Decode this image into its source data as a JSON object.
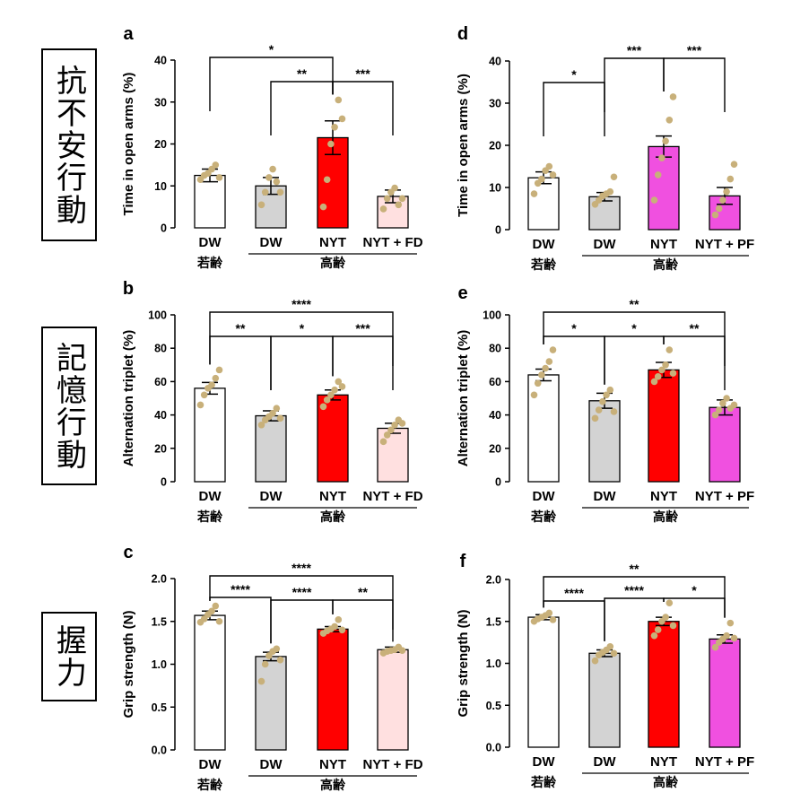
{
  "row_labels": [
    "抗不安行動",
    "記憶行動",
    "握力"
  ],
  "group_labels": {
    "young": "若齢",
    "aged": "高齢"
  },
  "colors": {
    "dw_young": "#ffffff",
    "dw_aged": "#d3d3d3",
    "nyt": "#ff0000",
    "fd": "#ffe0e0",
    "pf": "#f050e0",
    "dots": "#c8b07a",
    "axis": "#000000"
  },
  "chart_data": [
    {
      "id": "a",
      "panel_label": "a",
      "type": "bar",
      "ylabel": "Time in open arms (%)",
      "ylim": [
        0,
        40
      ],
      "yticks": [
        "0",
        "10",
        "20",
        "30",
        "40"
      ],
      "categories": [
        "DW",
        "DW",
        "NYT",
        "NYT + FD"
      ],
      "fills": [
        "dw_young",
        "dw_aged",
        "nyt",
        "fd"
      ],
      "values": [
        12.5,
        10,
        21.5,
        7.5
      ],
      "errors": [
        1.5,
        2,
        4,
        1.5
      ],
      "points": [
        [
          11.5,
          12.5,
          13,
          14,
          15,
          12
        ],
        [
          5.5,
          8.5,
          12,
          14,
          11,
          8.5
        ],
        [
          5,
          11.5,
          20,
          24,
          30.5,
          26
        ],
        [
          4.5,
          7,
          8.5,
          9.5,
          5.5,
          7
        ]
      ],
      "sig": [
        {
          "from": 0,
          "to": 2,
          "level": 1,
          "label": "*"
        },
        {
          "from": 1,
          "to": 2,
          "level": 0,
          "label": "**"
        },
        {
          "from": 2,
          "to": 3,
          "level": 0,
          "label": "***"
        }
      ]
    },
    {
      "id": "b",
      "panel_label": "b",
      "type": "bar",
      "ylabel": "Alternation triplet (%)",
      "ylim": [
        0,
        100
      ],
      "yticks": [
        "0",
        "20",
        "40",
        "60",
        "80",
        "100"
      ],
      "categories": [
        "DW",
        "DW",
        "NYT",
        "NYT + FD"
      ],
      "fills": [
        "dw_young",
        "dw_aged",
        "nyt",
        "fd"
      ],
      "values": [
        56,
        39.5,
        52,
        32
      ],
      "errors": [
        3.5,
        3,
        3,
        3
      ],
      "points": [
        [
          46,
          52,
          56,
          58,
          62,
          67
        ],
        [
          34,
          37,
          39,
          41,
          44,
          38
        ],
        [
          45,
          49,
          52,
          55,
          60,
          57
        ],
        [
          24,
          28,
          31,
          34,
          37,
          35
        ]
      ],
      "sig": [
        {
          "from": 0,
          "to": 3,
          "level": 1,
          "label": "****"
        },
        {
          "from": 0,
          "to": 1,
          "level": 0,
          "label": "**"
        },
        {
          "from": 1,
          "to": 2,
          "level": 0,
          "label": "*"
        },
        {
          "from": 2,
          "to": 3,
          "level": 0,
          "label": "***"
        }
      ]
    },
    {
      "id": "c",
      "panel_label": "c",
      "type": "bar",
      "ylabel": "Grip strength (N)",
      "ylim": [
        0,
        2.0
      ],
      "yticks": [
        "0.0",
        "0.5",
        "1.0",
        "1.5",
        "2.0"
      ],
      "categories": [
        "DW",
        "DW",
        "NYT",
        "NYT + FD"
      ],
      "fills": [
        "dw_young",
        "dw_aged",
        "nyt",
        "fd"
      ],
      "values": [
        1.57,
        1.09,
        1.41,
        1.17
      ],
      "errors": [
        0.05,
        0.05,
        0.03,
        0.03
      ],
      "points": [
        [
          1.49,
          1.53,
          1.58,
          1.62,
          1.68,
          1.5
        ],
        [
          0.8,
          1.0,
          1.1,
          1.15,
          1.18,
          1.05
        ],
        [
          1.36,
          1.39,
          1.41,
          1.44,
          1.52,
          1.4
        ],
        [
          1.13,
          1.15,
          1.16,
          1.17,
          1.2,
          1.16
        ]
      ],
      "sig": [
        {
          "from": 0,
          "to": 3,
          "level": 1,
          "label": "****"
        },
        {
          "from": 0,
          "to": 1,
          "level": 0,
          "label": "****"
        },
        {
          "from": 1,
          "to": 2,
          "level": 0,
          "label": "****"
        },
        {
          "from": 2,
          "to": 3,
          "level": 0,
          "label": "**"
        }
      ]
    },
    {
      "id": "d",
      "panel_label": "d",
      "type": "bar",
      "ylabel": "Time in open arms (%)",
      "ylim": [
        0,
        40
      ],
      "yticks": [
        "0",
        "10",
        "20",
        "30",
        "40"
      ],
      "categories": [
        "DW",
        "DW",
        "NYT",
        "NYT + PF"
      ],
      "fills": [
        "dw_young",
        "dw_aged",
        "pf",
        "pf"
      ],
      "values": [
        12.3,
        7.8,
        19.7,
        8.0
      ],
      "errors": [
        1.4,
        1.0,
        2.5,
        2.0
      ],
      "points": [
        [
          8.5,
          11,
          12,
          14,
          15,
          13
        ],
        [
          6,
          7,
          8,
          8.5,
          9,
          12.5
        ],
        [
          7,
          13,
          17,
          21,
          26,
          31.5
        ],
        [
          3.5,
          5,
          7,
          9,
          12,
          15.5
        ]
      ],
      "sig": [
        {
          "from": 0,
          "to": 1,
          "level": 0,
          "label": "*"
        },
        {
          "from": 1,
          "to": 2,
          "level": 1,
          "label": "***"
        },
        {
          "from": 2,
          "to": 3,
          "level": 1,
          "label": "***"
        }
      ]
    },
    {
      "id": "e",
      "panel_label": "e",
      "type": "bar",
      "ylabel": "Alternation triplet (%)",
      "ylim": [
        0,
        100
      ],
      "yticks": [
        "0",
        "20",
        "40",
        "60",
        "80",
        "100"
      ],
      "categories": [
        "DW",
        "DW",
        "NYT",
        "NYT + PF"
      ],
      "fills": [
        "dw_young",
        "dw_aged",
        "nyt",
        "pf"
      ],
      "values": [
        64,
        48.5,
        67,
        44.5
      ],
      "errors": [
        3.5,
        4.5,
        4.5,
        4.5
      ],
      "points": [
        [
          52,
          59,
          64,
          68,
          72,
          79
        ],
        [
          38,
          43,
          48,
          52,
          55,
          42
        ],
        [
          60,
          63,
          67,
          70,
          79,
          65
        ],
        [
          40,
          43,
          47,
          50,
          44,
          46
        ]
      ],
      "sig": [
        {
          "from": 0,
          "to": 3,
          "level": 1,
          "label": "**"
        },
        {
          "from": 0,
          "to": 1,
          "level": 0,
          "label": "*"
        },
        {
          "from": 1,
          "to": 2,
          "level": 0,
          "label": "*"
        },
        {
          "from": 2,
          "to": 3,
          "level": 0,
          "label": "**"
        }
      ]
    },
    {
      "id": "f",
      "panel_label": "f",
      "type": "bar",
      "ylabel": "Grip strength  (N)",
      "ylim": [
        0,
        2.0
      ],
      "yticks": [
        "0.0",
        "0.5",
        "1.0",
        "1.5",
        "2.0"
      ],
      "categories": [
        "DW",
        "DW",
        "NYT",
        "NYT + PF"
      ],
      "fills": [
        "dw_young",
        "dw_aged",
        "nyt",
        "pf"
      ],
      "values": [
        1.55,
        1.12,
        1.5,
        1.29
      ],
      "errors": [
        0.03,
        0.04,
        0.05,
        0.05
      ],
      "points": [
        [
          1.5,
          1.53,
          1.55,
          1.57,
          1.6,
          1.52
        ],
        [
          1.03,
          1.1,
          1.13,
          1.16,
          1.2,
          1.12
        ],
        [
          1.33,
          1.4,
          1.5,
          1.55,
          1.72,
          1.45
        ],
        [
          1.19,
          1.25,
          1.29,
          1.33,
          1.48,
          1.3
        ]
      ],
      "sig": [
        {
          "from": 0,
          "to": 3,
          "level": 1,
          "label": "**"
        },
        {
          "from": 0,
          "to": 1,
          "level": 0,
          "label": "****"
        },
        {
          "from": 1,
          "to": 2,
          "level": 0,
          "label": "****"
        },
        {
          "from": 2,
          "to": 3,
          "level": 0,
          "label": "*"
        }
      ]
    }
  ]
}
